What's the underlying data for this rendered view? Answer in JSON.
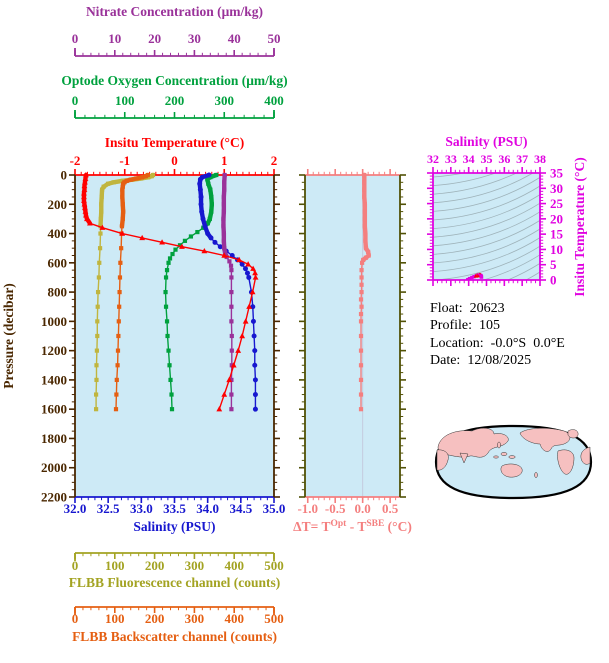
{
  "colors": {
    "red": "#ff0000",
    "salmon": "#f47f7f",
    "blue": "#1717cf",
    "green": "#00a13e",
    "purple": "#9a329a",
    "olive": "#a3a322",
    "olive_curve": "#c0b53e",
    "orange": "#e55f12",
    "brown": "#4a2700",
    "dark_olive": "#515106",
    "magenta": "#e003e0",
    "plot_bg": "#cdeaf6",
    "contour": "#9fb3ba",
    "zero_line": "#c4ccdf",
    "land": "#f6c0c0",
    "ocean": "#cdeaf6",
    "map_outline": "#000000",
    "info_text": "#000000"
  },
  "axes": {
    "nitrate": {
      "title": "Nitrate Concentration (μm/kg)",
      "min": 0,
      "max": 50,
      "major": 10,
      "minor": 2,
      "labels": [
        "0",
        "10",
        "20",
        "30",
        "40",
        "50"
      ]
    },
    "oxygen": {
      "title": "Optode Oxygen Concentration (μm/kg)",
      "min": 0,
      "max": 400,
      "major": 100,
      "minor": 20,
      "labels": [
        "0",
        "100",
        "200",
        "300",
        "400"
      ]
    },
    "temperature": {
      "title": "Insitu Temperature (°C)",
      "min": -2,
      "max": 2,
      "major": 1,
      "minor": 0.125,
      "labels": [
        "-2",
        "-1",
        "0",
        "1",
        "2"
      ]
    },
    "salinity": {
      "title": "Salinity (PSU)",
      "min": 32,
      "max": 35,
      "major": 0.5,
      "minor": 0.1,
      "labels": [
        "32.0",
        "32.5",
        "33.0",
        "33.5",
        "34.0",
        "34.5",
        "35.0"
      ]
    },
    "fluorescence": {
      "title": "FLBB Fluorescence channel (counts)",
      "min": 0,
      "max": 500,
      "major": 100,
      "minor": 20,
      "labels": [
        "0",
        "100",
        "200",
        "300",
        "400",
        "500"
      ]
    },
    "backscatter": {
      "title": "FLBB Backscatter channel (counts)",
      "min": 0,
      "max": 500,
      "major": 100,
      "minor": 20,
      "labels": [
        "0",
        "100",
        "200",
        "300",
        "400",
        "500"
      ]
    },
    "pressure": {
      "title": "Pressure (decibar)",
      "min": 0,
      "max": 2200,
      "major": 200,
      "minor": 50,
      "labels": [
        "0",
        "200",
        "400",
        "600",
        "800",
        "1000",
        "1200",
        "1400",
        "1600",
        "1800",
        "2000",
        "2200"
      ]
    },
    "delta": {
      "min": -1.05,
      "max": 0.68,
      "major": 0.5,
      "minor": 0.1,
      "labels": [
        "-1.0",
        "-0.5",
        "0.0",
        "0.5"
      ],
      "title_parts": {
        "prefix": "ΔT= T",
        "sup1": "Opt",
        "mid": " - T",
        "sup2": "SBE",
        "suffix": " (°C)"
      }
    }
  },
  "ts_panel": {
    "title_top": "Salinity (PSU)",
    "title_right": "Insitu Temperature (°C)",
    "s_min": 32,
    "s_max": 38,
    "s_major": 1,
    "s_minor": 0.25,
    "s_labels": [
      "32",
      "33",
      "34",
      "35",
      "36",
      "37",
      "38"
    ],
    "t_min": 0,
    "t_max": 35,
    "t_major": 5,
    "t_minor": 1,
    "t_labels": [
      "0",
      "5",
      "10",
      "15",
      "20",
      "25",
      "30",
      "35"
    ],
    "contours": "sigma-theta isopycnals"
  },
  "info": {
    "float": {
      "label": "Float:",
      "value": "20623"
    },
    "profile": {
      "label": "Profile:",
      "value": "105"
    },
    "location": {
      "label": "Location:",
      "value": "-0.0°S  0.0°E"
    },
    "date": {
      "label": "Date:",
      "value": "12/08/2025"
    }
  },
  "map": {
    "land_color": "#f6c0c0",
    "ocean_color": "#cdeaf6",
    "outline_color": "#000000"
  },
  "chart_data": {
    "type": "line",
    "orientation": "vertical ocean profiles, y = pressure (decibar) 0-2200 increasing downward, profiles reach 1600",
    "series": [
      {
        "key": "fluorescence",
        "name": "FLBB Fluorescence channel",
        "axis": "fluorescence",
        "color": "olive_curve",
        "marker": "square",
        "thick_to": 350,
        "points": [
          [
            0,
            196
          ],
          [
            8,
            193
          ],
          [
            16,
            184
          ],
          [
            24,
            166
          ],
          [
            32,
            144
          ],
          [
            40,
            120
          ],
          [
            50,
            97
          ],
          [
            60,
            83
          ],
          [
            80,
            72
          ],
          [
            100,
            68
          ],
          [
            150,
            67
          ],
          [
            200,
            66
          ],
          [
            250,
            66
          ],
          [
            300,
            65
          ],
          [
            350,
            64
          ],
          [
            400,
            64
          ],
          [
            500,
            63
          ],
          [
            600,
            61
          ],
          [
            700,
            60
          ],
          [
            800,
            58
          ],
          [
            900,
            57
          ],
          [
            1000,
            56
          ],
          [
            1100,
            56
          ],
          [
            1200,
            55
          ],
          [
            1300,
            54
          ],
          [
            1400,
            54
          ],
          [
            1500,
            53
          ],
          [
            1600,
            53
          ]
        ]
      },
      {
        "key": "backscatter",
        "name": "FLBB Backscatter channel",
        "axis": "backscatter",
        "color": "orange",
        "marker": "square",
        "thick_to": 380,
        "points": [
          [
            0,
            183
          ],
          [
            8,
            178
          ],
          [
            16,
            168
          ],
          [
            24,
            154
          ],
          [
            32,
            140
          ],
          [
            40,
            130
          ],
          [
            50,
            124
          ],
          [
            60,
            121
          ],
          [
            80,
            120
          ],
          [
            100,
            119
          ],
          [
            150,
            119
          ],
          [
            200,
            120
          ],
          [
            250,
            121
          ],
          [
            300,
            120
          ],
          [
            350,
            118
          ],
          [
            400,
            117
          ],
          [
            500,
            116
          ],
          [
            600,
            114
          ],
          [
            700,
            113
          ],
          [
            800,
            112
          ],
          [
            900,
            111
          ],
          [
            1000,
            110
          ],
          [
            1100,
            109
          ],
          [
            1200,
            108
          ],
          [
            1300,
            107
          ],
          [
            1400,
            105
          ],
          [
            1500,
            104
          ],
          [
            1600,
            103
          ]
        ]
      },
      {
        "key": "oxygen",
        "name": "Optode Oxygen Concentration",
        "axis": "oxygen",
        "color": "green",
        "marker": "square",
        "thick_to": 360,
        "points": [
          [
            0,
            284
          ],
          [
            15,
            272
          ],
          [
            30,
            266
          ],
          [
            60,
            268
          ],
          [
            100,
            272
          ],
          [
            150,
            274
          ],
          [
            200,
            275
          ],
          [
            250,
            274
          ],
          [
            300,
            271
          ],
          [
            330,
            267
          ],
          [
            360,
            258
          ],
          [
            390,
            246
          ],
          [
            420,
            233
          ],
          [
            450,
            221
          ],
          [
            480,
            211
          ],
          [
            510,
            202
          ],
          [
            540,
            196
          ],
          [
            570,
            191
          ],
          [
            600,
            188
          ],
          [
            650,
            185
          ],
          [
            700,
            183
          ],
          [
            800,
            182
          ],
          [
            900,
            183
          ],
          [
            1000,
            185
          ],
          [
            1100,
            186
          ],
          [
            1200,
            188
          ],
          [
            1300,
            190
          ],
          [
            1400,
            192
          ],
          [
            1500,
            194
          ],
          [
            1600,
            195
          ]
        ]
      },
      {
        "key": "salinity",
        "name": "Salinity",
        "axis": "salinity",
        "color": "blue",
        "marker": "circle",
        "thick_to": 430,
        "points": [
          [
            0,
            34.02
          ],
          [
            15,
            33.92
          ],
          [
            30,
            33.89
          ],
          [
            60,
            33.88
          ],
          [
            100,
            33.89
          ],
          [
            150,
            33.9
          ],
          [
            200,
            33.9
          ],
          [
            250,
            33.91
          ],
          [
            300,
            33.93
          ],
          [
            350,
            33.96
          ],
          [
            400,
            34.0
          ],
          [
            430,
            34.05
          ],
          [
            460,
            34.11
          ],
          [
            490,
            34.19
          ],
          [
            520,
            34.28
          ],
          [
            550,
            34.37
          ],
          [
            580,
            34.45
          ],
          [
            610,
            34.52
          ],
          [
            640,
            34.57
          ],
          [
            670,
            34.6
          ],
          [
            700,
            34.62
          ],
          [
            800,
            34.66
          ],
          [
            900,
            34.68
          ],
          [
            1000,
            34.69
          ],
          [
            1100,
            34.7
          ],
          [
            1200,
            34.71
          ],
          [
            1300,
            34.71
          ],
          [
            1400,
            34.72
          ],
          [
            1500,
            34.72
          ],
          [
            1600,
            34.72
          ]
        ]
      },
      {
        "key": "nitrate",
        "name": "Nitrate Concentration",
        "axis": "nitrate",
        "color": "purple",
        "marker": "square",
        "thick_to": 560,
        "points": [
          [
            0,
            37.6
          ],
          [
            50,
            37.5
          ],
          [
            100,
            37.5
          ],
          [
            150,
            37.4
          ],
          [
            200,
            37.4
          ],
          [
            250,
            37.4
          ],
          [
            300,
            37.3
          ],
          [
            350,
            37.3
          ],
          [
            400,
            37.4
          ],
          [
            450,
            37.4
          ],
          [
            500,
            37.5
          ],
          [
            530,
            37.7
          ],
          [
            560,
            38.1
          ],
          [
            590,
            38.8
          ],
          [
            620,
            39.2
          ],
          [
            650,
            39.3
          ],
          [
            700,
            39.3
          ],
          [
            800,
            39.3
          ],
          [
            900,
            39.3
          ],
          [
            1000,
            39.3
          ],
          [
            1100,
            39.4
          ],
          [
            1200,
            39.4
          ],
          [
            1300,
            39.4
          ],
          [
            1400,
            39.3
          ],
          [
            1500,
            39.3
          ],
          [
            1600,
            39.3
          ]
        ]
      },
      {
        "key": "temperature",
        "name": "Insitu Temperature",
        "axis": "temperature",
        "color": "red",
        "marker": "triangle",
        "thick_to": 335,
        "points": [
          [
            0,
            -1.78
          ],
          [
            25,
            -1.79
          ],
          [
            50,
            -1.8
          ],
          [
            75,
            -1.81
          ],
          [
            100,
            -1.81
          ],
          [
            125,
            -1.82
          ],
          [
            150,
            -1.82
          ],
          [
            175,
            -1.82
          ],
          [
            200,
            -1.81
          ],
          [
            225,
            -1.8
          ],
          [
            250,
            -1.79
          ],
          [
            275,
            -1.78
          ],
          [
            300,
            -1.76
          ],
          [
            330,
            -1.7
          ],
          [
            360,
            -1.45
          ],
          [
            400,
            -1.05
          ],
          [
            430,
            -0.65
          ],
          [
            460,
            -0.25
          ],
          [
            490,
            0.15
          ],
          [
            520,
            0.6
          ],
          [
            550,
            1.0
          ],
          [
            580,
            1.3
          ],
          [
            610,
            1.48
          ],
          [
            640,
            1.58
          ],
          [
            670,
            1.62
          ],
          [
            700,
            1.63
          ],
          [
            800,
            1.57
          ],
          [
            900,
            1.5
          ],
          [
            1000,
            1.43
          ],
          [
            1100,
            1.36
          ],
          [
            1200,
            1.28
          ],
          [
            1300,
            1.19
          ],
          [
            1400,
            1.1
          ],
          [
            1500,
            1.0
          ],
          [
            1600,
            0.9
          ]
        ]
      },
      {
        "key": "delta_t",
        "name": "Optode minus SBE temperature difference",
        "axis": "delta",
        "color": "salmon",
        "marker": "square",
        "thick_to": 580,
        "points": [
          [
            0,
            0.03
          ],
          [
            50,
            0.03
          ],
          [
            100,
            0.03
          ],
          [
            150,
            0.03
          ],
          [
            200,
            0.04
          ],
          [
            250,
            0.04
          ],
          [
            300,
            0.04
          ],
          [
            350,
            0.04
          ],
          [
            400,
            0.05
          ],
          [
            450,
            0.05
          ],
          [
            500,
            0.06
          ],
          [
            525,
            0.1
          ],
          [
            550,
            0.11
          ],
          [
            565,
            0.06
          ],
          [
            580,
            0.01
          ],
          [
            600,
            -0.01
          ],
          [
            650,
            -0.02
          ],
          [
            700,
            -0.02
          ],
          [
            750,
            -0.02
          ],
          [
            800,
            -0.02
          ],
          [
            850,
            -0.03
          ],
          [
            900,
            -0.02
          ],
          [
            950,
            -0.03
          ],
          [
            1000,
            -0.03
          ],
          [
            1100,
            -0.03
          ],
          [
            1200,
            -0.03
          ],
          [
            1300,
            -0.03
          ],
          [
            1400,
            -0.03
          ],
          [
            1500,
            -0.03
          ],
          [
            1600,
            -0.03
          ]
        ]
      }
    ],
    "ts_points": [
      [
        33.95,
        0.1
      ],
      [
        34.05,
        0.45
      ],
      [
        34.18,
        0.8
      ],
      [
        34.3,
        1.1
      ],
      [
        34.42,
        1.35
      ],
      [
        34.52,
        1.55
      ],
      [
        34.6,
        1.62
      ],
      [
        34.64,
        1.55
      ],
      [
        34.68,
        1.45
      ],
      [
        34.7,
        1.3
      ],
      [
        34.71,
        1.1
      ],
      [
        34.72,
        0.95
      ]
    ]
  }
}
